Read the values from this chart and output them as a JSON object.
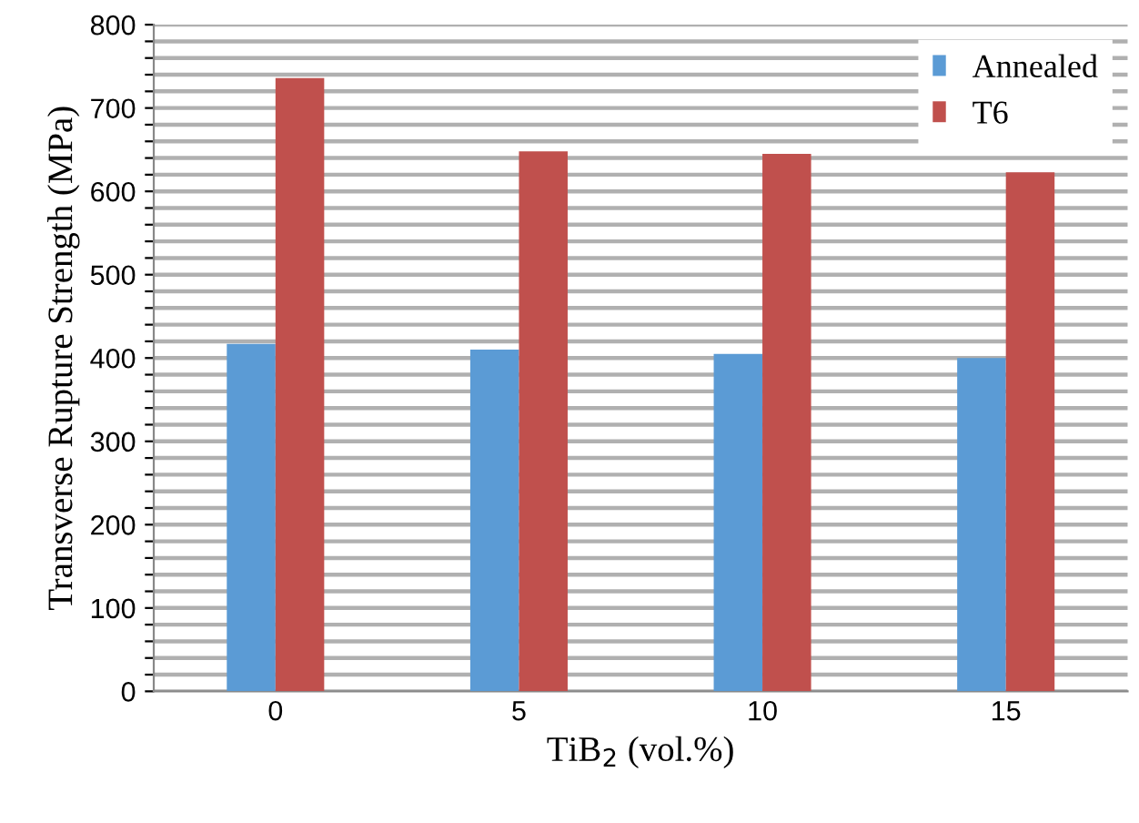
{
  "chart_data": {
    "type": "bar",
    "xlabel": "TiB$_{2}$ (vol.%)",
    "ylabel": "Transverse Rupture Strength (MPa)",
    "categories": [
      "0",
      "5",
      "10",
      "15"
    ],
    "series": [
      {
        "name": "Annealed",
        "color": "#5b9bd5",
        "values": [
          417,
          410,
          405,
          400
        ]
      },
      {
        "name": "T6",
        "color": "#c0504d",
        "values": [
          736,
          648,
          645,
          623
        ]
      }
    ],
    "ylim": [
      0,
      800
    ],
    "yticks": [
      0,
      {
        "value": 20,
        "label": null
      },
      {
        "value": 40,
        "label": null
      },
      {
        "value": 60,
        "label": null
      },
      {
        "value": 80,
        "label": null
      },
      100,
      {
        "value": 120,
        "label": null
      },
      {
        "value": 140,
        "label": null
      },
      {
        "value": 160,
        "label": null
      },
      {
        "value": 180,
        "label": null
      },
      200,
      {
        "value": 220,
        "label": null
      },
      {
        "value": 240,
        "label": null
      },
      {
        "value": 260,
        "label": null
      },
      {
        "value": 280,
        "label": null
      },
      300,
      {
        "value": 320,
        "label": null
      },
      {
        "value": 340,
        "label": null
      },
      {
        "value": 360,
        "label": null
      },
      {
        "value": 380,
        "label": null
      },
      400,
      {
        "value": 420,
        "label": null
      },
      {
        "value": 440,
        "label": null
      },
      {
        "value": 460,
        "label": null
      },
      {
        "value": 480,
        "label": null
      },
      500,
      {
        "value": 520,
        "label": null
      },
      {
        "value": 540,
        "label": null
      },
      {
        "value": 560,
        "label": null
      },
      {
        "value": 580,
        "label": null
      },
      600,
      {
        "value": 620,
        "label": null
      },
      {
        "value": 640,
        "label": null
      },
      {
        "value": 660,
        "label": null
      },
      {
        "value": 680,
        "label": null
      },
      700,
      {
        "value": 720,
        "label": null
      },
      {
        "value": 740,
        "label": null
      },
      {
        "value": 760,
        "label": null
      },
      {
        "value": 780,
        "label": null
      },
      800
    ],
    "grid": "y",
    "legend": "top right"
  }
}
